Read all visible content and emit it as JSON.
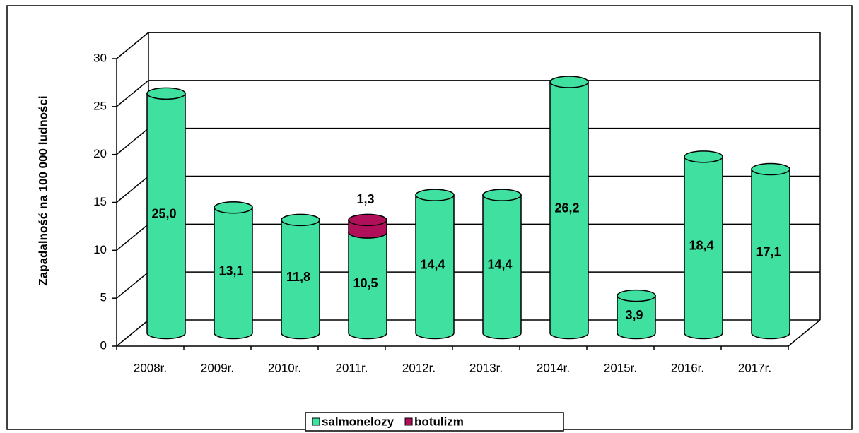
{
  "chart_data": {
    "type": "bar3d_stacked",
    "y_label": "Zapadalność na 100 000 ludności",
    "categories": [
      "2008r.",
      "2009r.",
      "2010r.",
      "2011r.",
      "2012r.",
      "2013r.",
      "2014r.",
      "2015r.",
      "2016r.",
      "2017r."
    ],
    "series": [
      {
        "name": "salmonelozy",
        "color": "#40e0a0",
        "values": [
          25.0,
          13.1,
          11.8,
          10.5,
          14.4,
          14.4,
          26.2,
          3.9,
          18.4,
          17.1
        ],
        "value_labels": [
          "25,0",
          "13,1",
          "11,8",
          "10,5",
          "14,4",
          "14,4",
          "26,2",
          "3,9",
          "18,4",
          "17,1"
        ]
      },
      {
        "name": "botulizm",
        "color": "#b0105a",
        "values": [
          null,
          null,
          null,
          1.3,
          null,
          null,
          null,
          null,
          null,
          null
        ],
        "value_labels": [
          null,
          null,
          null,
          "1,3",
          null,
          null,
          null,
          null,
          null,
          null
        ]
      }
    ],
    "ylim": [
      0,
      30
    ],
    "yticks": [
      0,
      5,
      10,
      15,
      20,
      25,
      30
    ],
    "grid": true
  }
}
